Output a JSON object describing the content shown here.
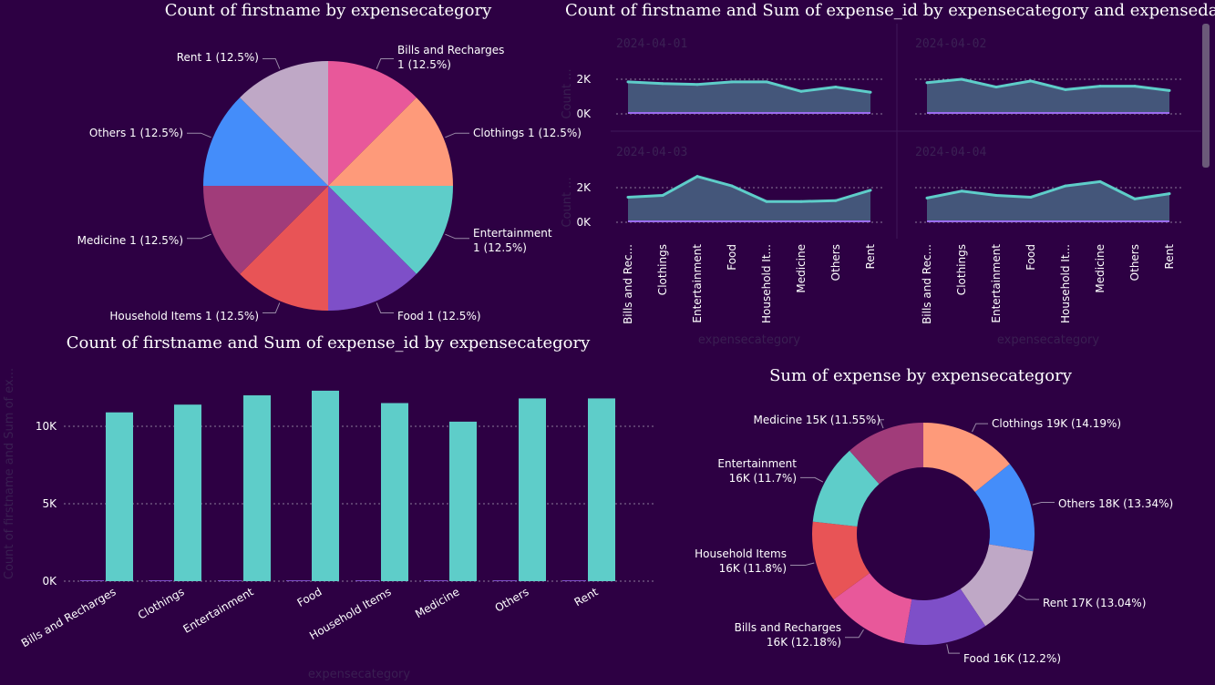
{
  "pie": {
    "title": "Count of firstname by expensecategory",
    "chart_data": {
      "type": "pie",
      "title": "Count of firstname by expensecategory",
      "slices": [
        {
          "label": "Bills and Recharges",
          "value": 1,
          "pct": "12.5%",
          "color": "#e8589a",
          "text": [
            "Bills and Recharges",
            "1 (12.5%)"
          ]
        },
        {
          "label": "Clothings",
          "value": 1,
          "pct": "12.5%",
          "color": "#fe9a7a",
          "text": [
            "Clothings 1 (12.5%)"
          ]
        },
        {
          "label": "Entertainment",
          "value": 1,
          "pct": "12.5%",
          "color": "#5ecdc9",
          "text": [
            "Entertainment",
            "1 (12.5%)"
          ]
        },
        {
          "label": "Food",
          "value": 1,
          "pct": "12.5%",
          "color": "#7e4fc8",
          "text": [
            "Food 1 (12.5%)"
          ]
        },
        {
          "label": "Household Items",
          "value": 1,
          "pct": "12.5%",
          "color": "#e85456",
          "text": [
            "Household Items 1 (12.5%)"
          ]
        },
        {
          "label": "Medicine",
          "value": 1,
          "pct": "12.5%",
          "color": "#a13c7a",
          "text": [
            "Medicine 1 (12.5%)"
          ]
        },
        {
          "label": "Others",
          "value": 1,
          "pct": "12.5%",
          "color": "#448dfa",
          "text": [
            "Others 1 (12.5%)"
          ]
        },
        {
          "label": "Rent",
          "value": 1,
          "pct": "12.5%",
          "color": "#bfa8c6",
          "text": [
            "Rent 1 (12.5%)"
          ]
        }
      ]
    }
  },
  "small_multiples": {
    "title": "Count of firstname and Sum of expense_id by expensecategory and expensedate",
    "chart_data": {
      "type": "area",
      "categories": [
        "Bills and Recharges",
        "Clothings",
        "Entertainment",
        "Food",
        "Household Items",
        "Medicine",
        "Others",
        "Rent"
      ],
      "tick_labels": [
        "Bills and Rec...",
        "Clothings",
        "Entertainment",
        "Food",
        "Household It...",
        "Medicine",
        "Others",
        "Rent"
      ],
      "y_ticks": [
        "2K",
        "0K"
      ],
      "ylim": [
        0,
        2600
      ],
      "ylabel": "Count ...",
      "xlabel": "expensecategory",
      "line_color": "#5ecdc9",
      "area_color": "#44567a",
      "panels": [
        {
          "date": "2024-04-01",
          "values": [
            1850,
            1750,
            1700,
            1850,
            1850,
            1300,
            1550,
            1250
          ]
        },
        {
          "date": "2024-04-02",
          "values": [
            1800,
            2000,
            1550,
            1900,
            1400,
            1600,
            1600,
            1350
          ]
        },
        {
          "date": "2024-04-03",
          "values": [
            1450,
            1550,
            2650,
            2100,
            1200,
            1200,
            1250,
            1850
          ]
        },
        {
          "date": "2024-04-04",
          "values": [
            1400,
            1800,
            1550,
            1450,
            2100,
            2350,
            1350,
            1650
          ]
        }
      ]
    }
  },
  "bars": {
    "title": "Count of firstname and Sum of expense_id by expensecategory",
    "chart_data": {
      "type": "bar",
      "categories": [
        "Bills and Recharges",
        "Clothings",
        "Entertainment",
        "Food",
        "Household Items",
        "Medicine",
        "Others",
        "Rent"
      ],
      "series": [
        {
          "name": "Count of firstname",
          "values": [
            1,
            1,
            1,
            1,
            1,
            1,
            1,
            1
          ],
          "color": "#7e4fc8"
        },
        {
          "name": "Sum of expense_id",
          "values": [
            10900,
            11400,
            12000,
            12300,
            11500,
            10300,
            11800,
            11800
          ],
          "color": "#5ecdc9"
        }
      ],
      "y_ticks": [
        {
          "value": 10000,
          "label": "10K"
        },
        {
          "value": 5000,
          "label": "5K"
        },
        {
          "value": 0,
          "label": "0K"
        }
      ],
      "ylim": [
        0,
        13000
      ],
      "ylabel": "Count of firstname and Sum of ex...",
      "xlabel": "expensecategory"
    }
  },
  "donut": {
    "title": "Sum of expense by expensecategory",
    "chart_data": {
      "type": "pie",
      "title": "Sum of expense by expensecategory",
      "slices": [
        {
          "label": "Clothings",
          "value": 19,
          "pct": 14.19,
          "color": "#fe9a7a",
          "text": [
            "Clothings 19K (14.19%)"
          ]
        },
        {
          "label": "Others",
          "value": 18,
          "pct": 13.34,
          "color": "#448dfa",
          "text": [
            "Others 18K (13.34%)"
          ]
        },
        {
          "label": "Rent",
          "value": 17,
          "pct": 13.04,
          "color": "#bfa8c6",
          "text": [
            "Rent 17K (13.04%)"
          ]
        },
        {
          "label": "Food",
          "value": 16,
          "pct": 12.2,
          "color": "#7e4fc8",
          "text": [
            "Food 16K (12.2%)"
          ]
        },
        {
          "label": "Bills and Recharges",
          "value": 16,
          "pct": 12.18,
          "color": "#e8589a",
          "text": [
            "Bills and Recharges",
            "16K (12.18%)"
          ]
        },
        {
          "label": "Household Items",
          "value": 16,
          "pct": 11.8,
          "color": "#e85456",
          "text": [
            "Household Items",
            "16K (11.8%)"
          ]
        },
        {
          "label": "Entertainment",
          "value": 16,
          "pct": 11.7,
          "color": "#5ecdc9",
          "text": [
            "Entertainment",
            "16K (11.7%)"
          ]
        },
        {
          "label": "Medicine",
          "value": 15,
          "pct": 11.55,
          "color": "#a13c7a",
          "text": [
            "Medicine 15K (11.55%)"
          ]
        }
      ]
    }
  }
}
